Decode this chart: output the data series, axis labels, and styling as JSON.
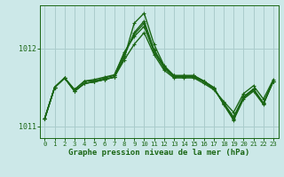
{
  "bg_color": "#cce8e8",
  "grid_color": "#aacccc",
  "line_color": "#1a6614",
  "xlabel": "Graphe pression niveau de la mer (hPa)",
  "x_ticks": [
    0,
    1,
    2,
    3,
    4,
    5,
    6,
    7,
    8,
    9,
    10,
    11,
    12,
    13,
    14,
    15,
    16,
    17,
    18,
    19,
    20,
    21,
    22,
    23
  ],
  "ymin": 1010.85,
  "ymax": 1012.55,
  "yticks": [
    1011,
    1012
  ],
  "series": [
    [
      1011.1,
      1011.5,
      1011.62,
      1011.45,
      1011.55,
      1011.57,
      1011.6,
      1011.63,
      1011.85,
      1012.05,
      1012.2,
      1011.92,
      1011.72,
      1011.62,
      1011.62,
      1011.62,
      1011.55,
      1011.47,
      1011.32,
      1011.18,
      1011.42,
      1011.52,
      1011.35,
      1011.6
    ],
    [
      1011.1,
      1011.5,
      1011.62,
      1011.45,
      1011.55,
      1011.57,
      1011.6,
      1011.63,
      1011.9,
      1012.2,
      1012.35,
      1011.98,
      1011.77,
      1011.65,
      1011.65,
      1011.65,
      1011.58,
      1011.5,
      1011.28,
      1011.08,
      1011.35,
      1011.45,
      1011.28,
      1011.58
    ],
    [
      1011.1,
      1011.5,
      1011.62,
      1011.47,
      1011.58,
      1011.58,
      1011.62,
      1011.65,
      1011.95,
      1012.15,
      1012.28,
      1011.95,
      1011.75,
      1011.63,
      1011.63,
      1011.63,
      1011.57,
      1011.48,
      1011.3,
      1011.12,
      1011.38,
      1011.48,
      1011.3,
      1011.58
    ],
    [
      1011.1,
      1011.5,
      1011.62,
      1011.47,
      1011.58,
      1011.6,
      1011.63,
      1011.66,
      1011.93,
      1012.18,
      1012.32,
      1011.97,
      1011.76,
      1011.64,
      1011.64,
      1011.64,
      1011.58,
      1011.49,
      1011.29,
      1011.1,
      1011.37,
      1011.47,
      1011.29,
      1011.58
    ],
    [
      1011.1,
      1011.5,
      1011.62,
      1011.45,
      1011.55,
      1011.57,
      1011.6,
      1011.63,
      1011.88,
      1012.32,
      1012.45,
      1012.05,
      1011.78,
      1011.65,
      1011.65,
      1011.65,
      1011.58,
      1011.49,
      1011.29,
      1011.09,
      1011.37,
      1011.47,
      1011.29,
      1011.58
    ]
  ],
  "marker": "+",
  "markersize": 3.5,
  "linewidth": 1.0,
  "tick_fontsize": 5.2,
  "ylabel_fontsize": 6.0,
  "xlabel_fontsize": 6.5
}
